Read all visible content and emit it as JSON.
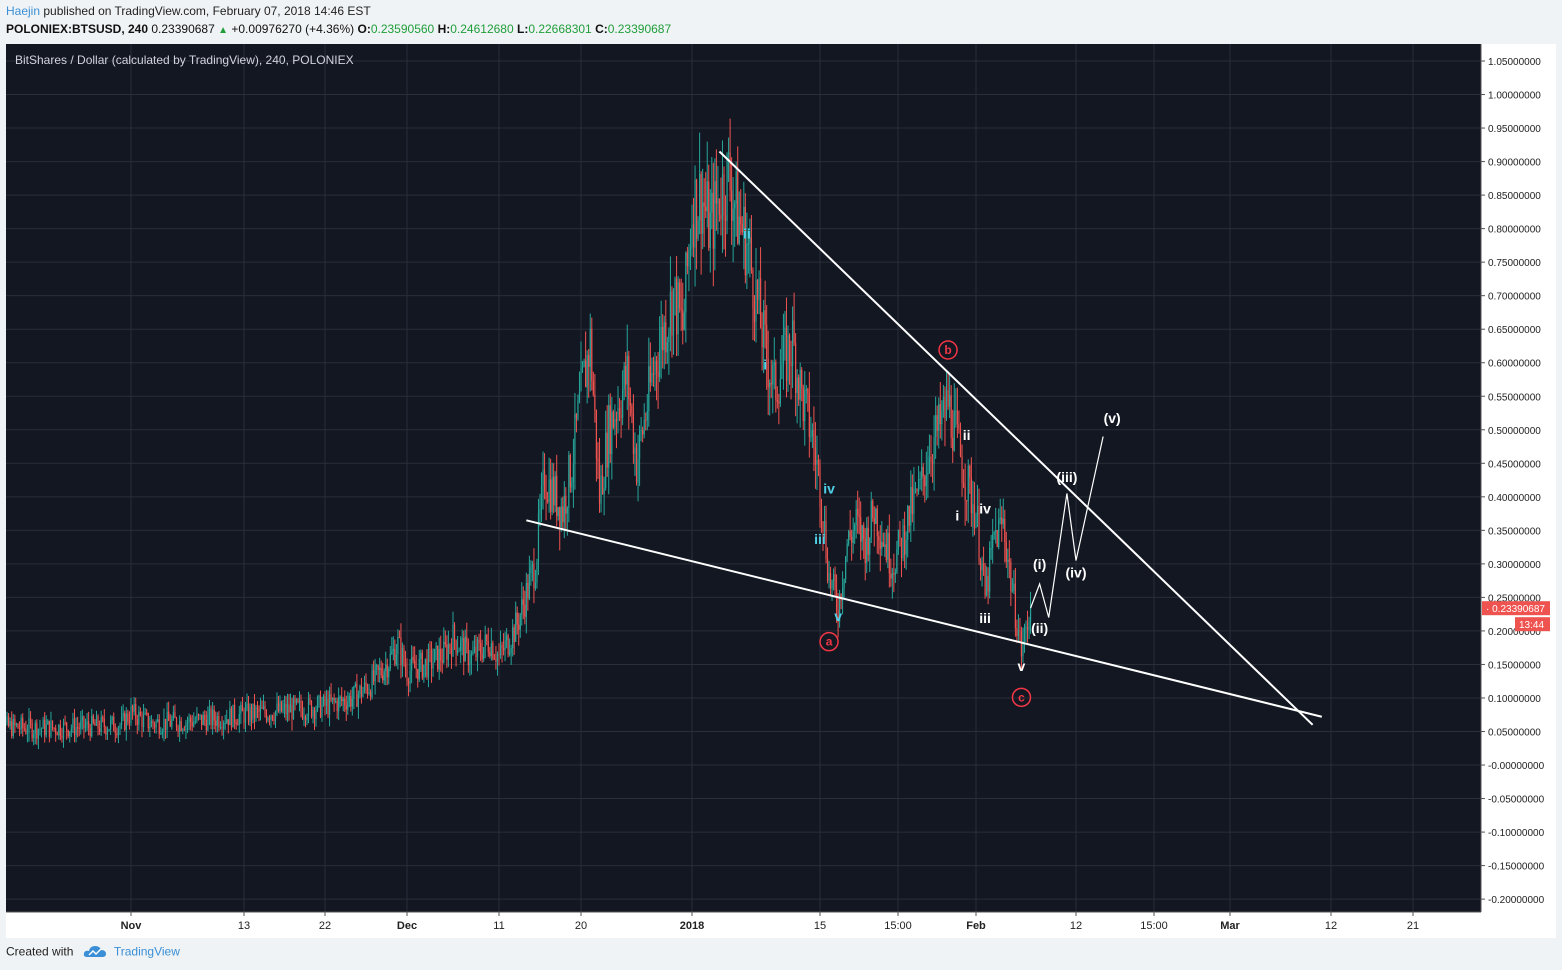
{
  "header": {
    "author": "Haejin",
    "published_text": "published on TradingView.com, February 07, 2018 14:46 EST"
  },
  "symbol_line": {
    "symbol": "POLONIEX:BTSUSD, 240",
    "last": "0.23390687",
    "change_arrow": "▲",
    "change": "+0.00976270 (+4.36%)",
    "o_label": "O:",
    "o_value": "0.23590560",
    "h_label": "H:",
    "h_value": "0.24612680",
    "l_label": "L:",
    "l_value": "0.22668301",
    "c_label": "C:",
    "c_value": "0.23390687"
  },
  "footer": {
    "created_with": "Created with",
    "brand": "TradingView",
    "logo_icon": "tradingview-cloud-icon"
  },
  "colors": {
    "background": "#131722",
    "grid": "#2a2e39",
    "up_candle": "#26a69a",
    "down_candle": "#ef5350",
    "wave_cyan": "#4fd1e8",
    "wave_white": "#ffffff",
    "wave_red": "#f23645",
    "price_tag": "#ef5350"
  },
  "chart_data": {
    "type": "candlestick",
    "title": "BitShares / Dollar (calculated by TradingView), 240, POLONIEX",
    "timeframe": "240",
    "y_scale": "linear",
    "ylim": [
      -0.22,
      1.05
    ],
    "y_ticks": [
      "1.05000000",
      "1.00000000",
      "0.95000000",
      "0.90000000",
      "0.85000000",
      "0.80000000",
      "0.75000000",
      "0.70000000",
      "0.65000000",
      "0.60000000",
      "0.55000000",
      "0.50000000",
      "0.45000000",
      "0.40000000",
      "0.35000000",
      "0.30000000",
      "0.25000000",
      "0.20000000",
      "0.15000000",
      "0.10000000",
      "0.05000000",
      "-0.00000000",
      "-0.05000000",
      "-0.10000000",
      "-0.15000000",
      "-0.20000000"
    ],
    "x_ticks": [
      {
        "label": "Nov",
        "bold": true,
        "date": "2017-11-01"
      },
      {
        "label": "13",
        "bold": false,
        "date": "2017-11-13"
      },
      {
        "label": "22",
        "bold": false,
        "date": "2017-11-22"
      },
      {
        "label": "Dec",
        "bold": true,
        "date": "2017-12-01"
      },
      {
        "label": "11",
        "bold": false,
        "date": "2017-12-11"
      },
      {
        "label": "20",
        "bold": false,
        "date": "2017-12-20"
      },
      {
        "label": "2018",
        "bold": true,
        "date": "2018-01-01"
      },
      {
        "label": "15",
        "bold": false,
        "date": "2018-01-15"
      },
      {
        "label": "15:00",
        "bold": false,
        "date": "2018-01-23 15:00"
      },
      {
        "label": "Feb",
        "bold": true,
        "date": "2018-02-01"
      },
      {
        "label": "12",
        "bold": false,
        "date": "2018-02-12"
      },
      {
        "label": "15:00",
        "bold": false,
        "date": "2018-02-20 15:00"
      },
      {
        "label": "Mar",
        "bold": true,
        "date": "2018-03-01"
      },
      {
        "label": "12",
        "bold": false,
        "date": "2018-03-12"
      },
      {
        "label": "21",
        "bold": false,
        "date": "2018-03-21"
      }
    ],
    "price_path": [
      [
        "2017-10-17",
        0.058
      ],
      [
        "2017-10-22",
        0.055
      ],
      [
        "2017-10-27",
        0.057
      ],
      [
        "2017-10-31",
        0.06
      ],
      [
        "2017-11-01",
        0.078
      ],
      [
        "2017-11-03",
        0.062
      ],
      [
        "2017-11-08",
        0.066
      ],
      [
        "2017-11-13",
        0.075
      ],
      [
        "2017-11-18",
        0.082
      ],
      [
        "2017-11-22",
        0.088
      ],
      [
        "2017-11-25",
        0.1
      ],
      [
        "2017-11-27",
        0.12
      ],
      [
        "2017-11-29",
        0.155
      ],
      [
        "2017-11-30",
        0.18
      ],
      [
        "2017-12-01",
        0.14
      ],
      [
        "2017-12-03",
        0.15
      ],
      [
        "2017-12-05",
        0.165
      ],
      [
        "2017-12-06",
        0.19
      ],
      [
        "2017-12-08",
        0.16
      ],
      [
        "2017-12-10",
        0.185
      ],
      [
        "2017-12-11",
        0.16
      ],
      [
        "2017-12-13",
        0.21
      ],
      [
        "2017-12-15",
        0.3
      ],
      [
        "2017-12-16",
        0.43
      ],
      [
        "2017-12-18",
        0.38
      ],
      [
        "2017-12-19",
        0.45
      ],
      [
        "2017-12-20",
        0.55
      ],
      [
        "2017-12-21",
        0.63
      ],
      [
        "2017-12-22",
        0.4
      ],
      [
        "2017-12-23",
        0.5
      ],
      [
        "2017-12-25",
        0.58
      ],
      [
        "2017-12-26",
        0.45
      ],
      [
        "2017-12-28",
        0.6
      ],
      [
        "2017-12-30",
        0.7
      ],
      [
        "2017-12-31",
        0.65
      ],
      [
        "2018-01-01",
        0.83
      ],
      [
        "2018-01-02",
        0.85
      ],
      [
        "2018-01-03",
        0.8
      ],
      [
        "2018-01-04",
        0.85
      ],
      [
        "2018-01-05",
        0.88
      ],
      [
        "2018-01-06",
        0.82
      ],
      [
        "2018-01-07",
        0.78
      ],
      [
        "2018-01-08",
        0.7
      ],
      [
        "2018-01-09",
        0.62
      ],
      [
        "2018-01-10",
        0.56
      ],
      [
        "2018-01-11",
        0.6
      ],
      [
        "2018-01-12",
        0.63
      ],
      [
        "2018-01-13",
        0.55
      ],
      [
        "2018-01-14",
        0.5
      ],
      [
        "2018-01-15",
        0.42
      ],
      [
        "2018-01-16",
        0.28
      ],
      [
        "2018-01-17",
        0.235
      ],
      [
        "2018-01-18",
        0.33
      ],
      [
        "2018-01-19",
        0.36
      ],
      [
        "2018-01-20",
        0.33
      ],
      [
        "2018-01-21",
        0.38
      ],
      [
        "2018-01-22",
        0.34
      ],
      [
        "2018-01-23",
        0.3
      ],
      [
        "2018-01-24",
        0.33
      ],
      [
        "2018-01-25",
        0.38
      ],
      [
        "2018-01-26",
        0.41
      ],
      [
        "2018-01-27",
        0.47
      ],
      [
        "2018-01-28",
        0.5
      ],
      [
        "2018-01-29",
        0.54
      ],
      [
        "2018-01-30",
        0.48
      ],
      [
        "2018-01-31",
        0.42
      ],
      [
        "2018-02-01",
        0.38
      ],
      [
        "2018-02-02",
        0.25
      ],
      [
        "2018-02-03",
        0.34
      ],
      [
        "2018-02-04",
        0.36
      ],
      [
        "2018-02-05",
        0.26
      ],
      [
        "2018-02-06",
        0.17
      ],
      [
        "2018-02-07",
        0.234
      ]
    ],
    "last_price": "0.23390687",
    "countdown": "13:44",
    "trendlines": [
      {
        "name": "upper",
        "from": [
          "2018-01-04",
          0.915
        ],
        "to": [
          "2018-03-10",
          0.06
        ]
      },
      {
        "name": "lower",
        "from": [
          "2017-12-14",
          0.365
        ],
        "to": [
          "2018-03-11",
          0.072
        ]
      }
    ],
    "projection": [
      [
        "2018-02-07",
        0.234
      ],
      [
        "2018-02-08",
        0.27
      ],
      [
        "2018-02-09",
        0.22
      ],
      [
        "2018-02-11",
        0.405
      ],
      [
        "2018-02-12",
        0.305
      ],
      [
        "2018-02-15",
        0.49
      ]
    ],
    "wave_labels": [
      {
        "text": "ii",
        "date": "2018-01-07",
        "price": 0.785,
        "color": "cyan"
      },
      {
        "text": "i",
        "date": "2018-01-09",
        "price": 0.59,
        "color": "cyan"
      },
      {
        "text": "iii",
        "date": "2018-01-15",
        "price": 0.33,
        "color": "cyan"
      },
      {
        "text": "iv",
        "date": "2018-01-16",
        "price": 0.405,
        "color": "cyan"
      },
      {
        "text": "v",
        "date": "2018-01-17",
        "price": 0.215,
        "color": "cyan"
      },
      {
        "text": "a",
        "date": "2018-01-16",
        "price": 0.178,
        "color": "red",
        "circled": true
      },
      {
        "text": "b",
        "date": "2018-01-29",
        "price": 0.613,
        "color": "red",
        "circled": true
      },
      {
        "text": "c",
        "date": "2018-02-06",
        "price": 0.095,
        "color": "red",
        "circled": true
      },
      {
        "text": "ii",
        "date": "2018-01-31",
        "price": 0.485,
        "color": "white"
      },
      {
        "text": "i",
        "date": "2018-01-30",
        "price": 0.365,
        "color": "white"
      },
      {
        "text": "iv",
        "date": "2018-02-02",
        "price": 0.375,
        "color": "white"
      },
      {
        "text": "iii",
        "date": "2018-02-02",
        "price": 0.212,
        "color": "white"
      },
      {
        "text": "v",
        "date": "2018-02-06",
        "price": 0.14,
        "color": "white"
      },
      {
        "text": "(i)",
        "date": "2018-02-08",
        "price": 0.292,
        "color": "white"
      },
      {
        "text": "(ii)",
        "date": "2018-02-08",
        "price": 0.197,
        "color": "white"
      },
      {
        "text": "(iii)",
        "date": "2018-02-11",
        "price": 0.422,
        "color": "white"
      },
      {
        "text": "(iv)",
        "date": "2018-02-12",
        "price": 0.28,
        "color": "white"
      },
      {
        "text": "(v)",
        "date": "2018-02-16",
        "price": 0.51,
        "color": "white"
      }
    ]
  }
}
